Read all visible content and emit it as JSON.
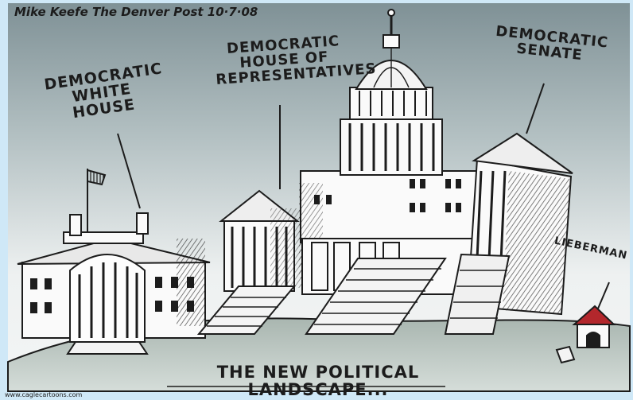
{
  "cartoon": {
    "signature": "Mike Keefe The Denver Post 10·7·08",
    "labels": {
      "white_house": "Democratic White House",
      "house": "Democratic House of Representatives",
      "senate": "Democratic Senate",
      "lieberman": "Lieberman"
    },
    "caption": "The New Political Landscape...",
    "credit": "www.caglecartoons.com"
  },
  "colors": {
    "sky_top": "#7f9196",
    "sky_bottom": "#f3f5f5",
    "ground_top": "#a9b6b0",
    "ground_bottom": "#d5ddd9",
    "ink": "#1c1c1c",
    "doghouse_roof": "#b3272c",
    "frame_blue": "#cfe8f7"
  },
  "icons": [
    "white-house-drawing",
    "capitol-building-drawing",
    "senate-wing-drawing",
    "doghouse-drawing",
    "flag-icon"
  ]
}
